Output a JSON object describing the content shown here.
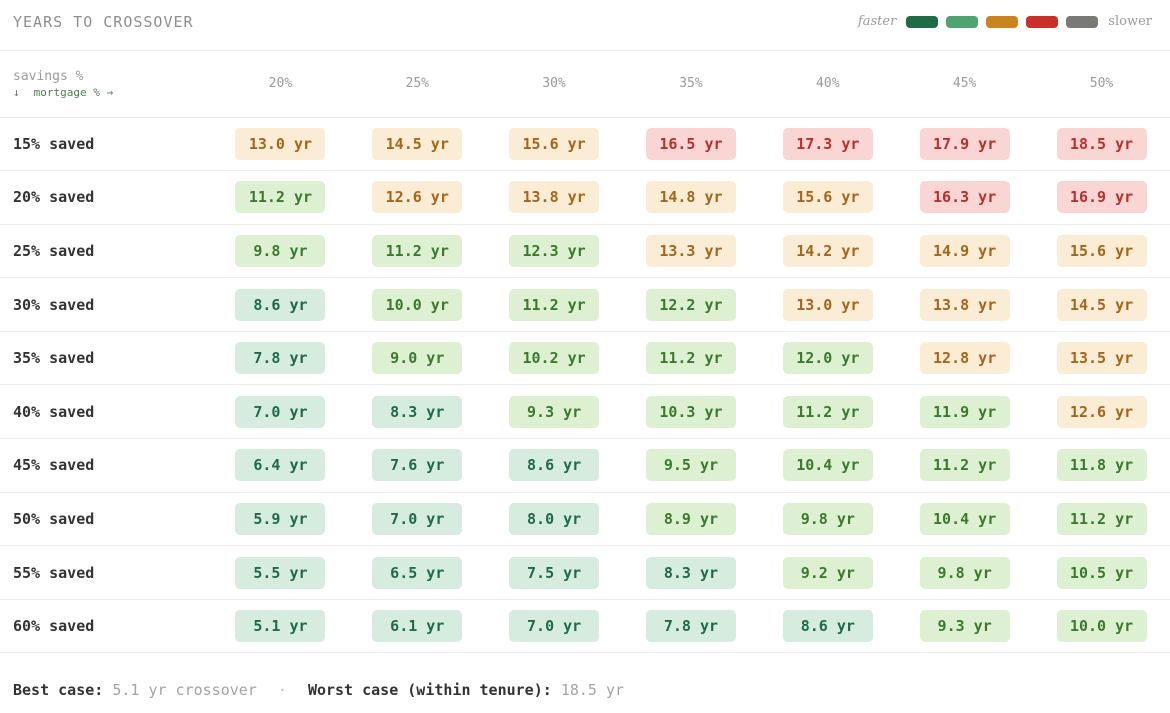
{
  "header": {
    "title": "YEARS TO CROSSOVER",
    "legend": {
      "faster_label": "faster",
      "slower_label": "slower",
      "swatches": [
        "#1f6b48",
        "#4fa36e",
        "#c8841e",
        "#c8302a",
        "#7a7a74"
      ]
    }
  },
  "table": {
    "corner": {
      "row_axis": "savings %",
      "col_axis": "mortgage % →",
      "down_arrow": "↓"
    },
    "columns": [
      "20%",
      "25%",
      "30%",
      "35%",
      "40%",
      "45%",
      "50%"
    ],
    "rows": [
      {
        "label": "15% saved",
        "cells": [
          "13.0 yr",
          "14.5 yr",
          "15.6 yr",
          "16.5 yr",
          "17.3 yr",
          "17.9 yr",
          "18.5 yr"
        ]
      },
      {
        "label": "20% saved",
        "cells": [
          "11.2 yr",
          "12.6 yr",
          "13.8 yr",
          "14.8 yr",
          "15.6 yr",
          "16.3 yr",
          "16.9 yr"
        ]
      },
      {
        "label": "25% saved",
        "cells": [
          "9.8 yr",
          "11.2 yr",
          "12.3 yr",
          "13.3 yr",
          "14.2 yr",
          "14.9 yr",
          "15.6 yr"
        ]
      },
      {
        "label": "30% saved",
        "cells": [
          "8.6 yr",
          "10.0 yr",
          "11.2 yr",
          "12.2 yr",
          "13.0 yr",
          "13.8 yr",
          "14.5 yr"
        ]
      },
      {
        "label": "35% saved",
        "cells": [
          "7.8 yr",
          "9.0 yr",
          "10.2 yr",
          "11.2 yr",
          "12.0 yr",
          "12.8 yr",
          "13.5 yr"
        ]
      },
      {
        "label": "40% saved",
        "cells": [
          "7.0 yr",
          "8.3 yr",
          "9.3 yr",
          "10.3 yr",
          "11.2 yr",
          "11.9 yr",
          "12.6 yr"
        ]
      },
      {
        "label": "45% saved",
        "cells": [
          "6.4 yr",
          "7.6 yr",
          "8.6 yr",
          "9.5 yr",
          "10.4 yr",
          "11.2 yr",
          "11.8 yr"
        ]
      },
      {
        "label": "50% saved",
        "cells": [
          "5.9 yr",
          "7.0 yr",
          "8.0 yr",
          "8.9 yr",
          "9.8 yr",
          "10.4 yr",
          "11.2 yr"
        ]
      },
      {
        "label": "55% saved",
        "cells": [
          "5.5 yr",
          "6.5 yr",
          "7.5 yr",
          "8.3 yr",
          "9.2 yr",
          "9.8 yr",
          "10.5 yr"
        ]
      },
      {
        "label": "60% saved",
        "cells": [
          "5.1 yr",
          "6.1 yr",
          "7.0 yr",
          "7.8 yr",
          "8.6 yr",
          "9.3 yr",
          "10.0 yr"
        ]
      }
    ],
    "tiers": [
      [
        "o1",
        "o1",
        "o1",
        "r1",
        "r1",
        "r1",
        "r1"
      ],
      [
        "g2",
        "o1",
        "o1",
        "o1",
        "o1",
        "r1",
        "r1"
      ],
      [
        "g2",
        "g2",
        "g2",
        "o1",
        "o1",
        "o1",
        "o1"
      ],
      [
        "g1",
        "g2",
        "g2",
        "g2",
        "o1",
        "o1",
        "o1"
      ],
      [
        "g1",
        "g2",
        "g2",
        "g2",
        "g2",
        "o1",
        "o1"
      ],
      [
        "g1",
        "g1",
        "g2",
        "g2",
        "g2",
        "g2",
        "o1"
      ],
      [
        "g1",
        "g1",
        "g1",
        "g2",
        "g2",
        "g2",
        "g2"
      ],
      [
        "g1",
        "g1",
        "g1",
        "g2",
        "g2",
        "g2",
        "g2"
      ],
      [
        "g1",
        "g1",
        "g1",
        "g1",
        "g2",
        "g2",
        "g2"
      ],
      [
        "g1",
        "g1",
        "g1",
        "g1",
        "g1",
        "g2",
        "g2"
      ]
    ]
  },
  "footer": {
    "best_label": "Best case:",
    "best_value": "5.1 yr crossover",
    "separator": "·",
    "worst_label": "Worst case (within tenure):",
    "worst_value": "18.5 yr"
  }
}
